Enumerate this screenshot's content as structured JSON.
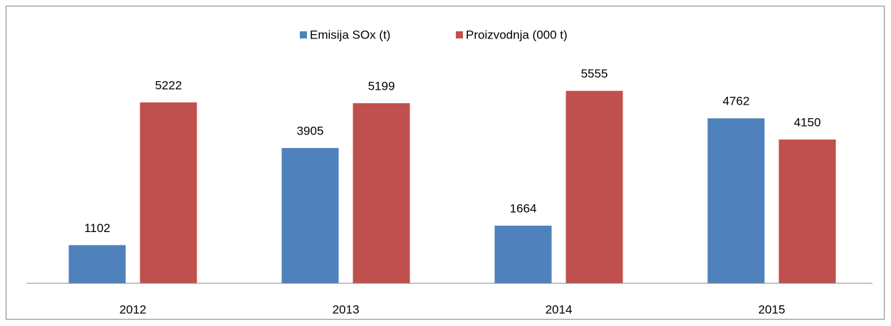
{
  "chart_data": {
    "type": "bar",
    "categories": [
      "2012",
      "2013",
      "2014",
      "2015"
    ],
    "series": [
      {
        "name": "Emisija SOx (t)",
        "color": "#4f81bd",
        "values": [
          1102,
          3905,
          1664,
          4762
        ]
      },
      {
        "name": "Proizvodnja (000 t)",
        "color": "#c0504d",
        "values": [
          5222,
          5199,
          5555,
          4150
        ]
      }
    ],
    "ylim": [
      0,
      6000
    ],
    "legend": "top"
  }
}
